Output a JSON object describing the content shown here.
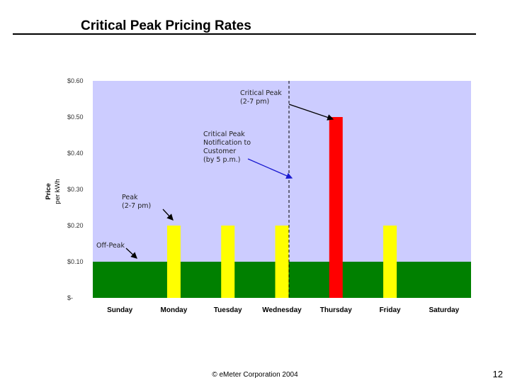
{
  "slide": {
    "title": "Critical Peak Pricing Rates",
    "footer": "© eMeter Corporation 2004",
    "page_number": "12"
  },
  "chart_data": {
    "type": "bar",
    "title": "",
    "ylabel": [
      "Price",
      "per kWh"
    ],
    "xlabel": "",
    "categories": [
      "Sunday",
      "Monday",
      "Tuesday",
      "Wednesday",
      "Thursday",
      "Friday",
      "Saturday"
    ],
    "ylim": [
      0,
      0.6
    ],
    "yticks": [
      {
        "value": 0.6,
        "label": "$0.60"
      },
      {
        "value": 0.5,
        "label": "$0.50"
      },
      {
        "value": 0.4,
        "label": "$0.40"
      },
      {
        "value": 0.3,
        "label": "$0.30"
      },
      {
        "value": 0.2,
        "label": "$0.20"
      },
      {
        "value": 0.1,
        "label": "$0.10"
      },
      {
        "value": 0.0,
        "label": "$-"
      }
    ],
    "off_peak": {
      "value": 0.1,
      "color": "#008000"
    },
    "background_color": "#ccccff",
    "bars": [
      {
        "day": "Monday",
        "value": 0.2,
        "color": "#ffff00"
      },
      {
        "day": "Tuesday",
        "value": 0.2,
        "color": "#ffff00"
      },
      {
        "day": "Wednesday",
        "value": 0.2,
        "color": "#ffff00"
      },
      {
        "day": "Thursday",
        "value": 0.5,
        "color": "#ff0000"
      },
      {
        "day": "Friday",
        "value": 0.2,
        "color": "#ffff00"
      }
    ],
    "notification_line_day": "Wednesday",
    "annotations": [
      {
        "id": "critical-peak",
        "lines": [
          "Critical Peak",
          "(2-7 pm)"
        ]
      },
      {
        "id": "notification",
        "lines": [
          "Critical Peak",
          "Notification to",
          "Customer",
          "(by 5 p.m.)"
        ]
      },
      {
        "id": "peak",
        "lines": [
          "Peak",
          "(2-7 pm)"
        ]
      },
      {
        "id": "off-peak",
        "lines": [
          "Off-Peak"
        ]
      }
    ]
  }
}
